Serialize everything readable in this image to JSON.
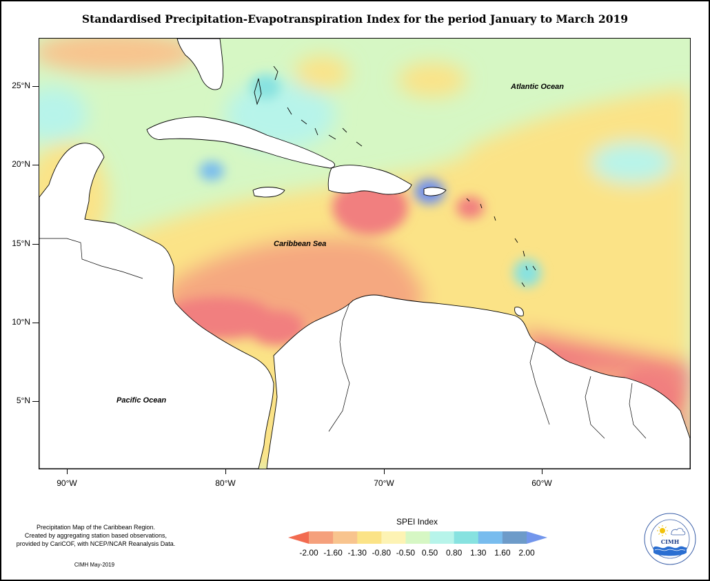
{
  "title": "Standardised Precipitation-Evapotranspiration Index for the period January to March 2019",
  "map_labels": {
    "atlantic": "Atlantic Ocean",
    "caribbean": "Caribbean Sea",
    "pacific": "Pacific Ocean"
  },
  "axes": {
    "y_labels": [
      "25°N",
      "20°N",
      "15°N",
      "10°N",
      "5°N"
    ],
    "x_labels": [
      "90°W",
      "80°W",
      "70°W",
      "60°W"
    ]
  },
  "footer": {
    "note_lines": [
      "Precipitation Map of the Caribbean Region.",
      "Created by aggregating station based observations,",
      "provided by CariCOF, with NCEP/NCAR Reanalysis Data."
    ],
    "credit": "CIMH May-2019"
  },
  "legend": {
    "title": "SPEI Index",
    "breaks": [
      "-2.00",
      "-1.60",
      "-1.30",
      "-0.80",
      "-0.50",
      "0.50",
      "0.80",
      "1.30",
      "1.60",
      "2.00"
    ],
    "colors": [
      "#f26b50",
      "#f5a07c",
      "#f8c48e",
      "#fbe387",
      "#fdf3b4",
      "#d6f7c4",
      "#b7f4ea",
      "#87e2e0",
      "#78bcee",
      "#6d9bc9",
      "#7296ec"
    ]
  },
  "logo": {
    "text": "CIMH",
    "ring_text": "Caribbean Institute for Meteorology and Hydrology",
    "icons": [
      "sun-icon",
      "cloud-icon",
      "waves-icon"
    ]
  },
  "colors": {
    "land": "#ffffff",
    "border": "#000000",
    "dry_extreme": "#f17f7f",
    "dry": "#f5a880",
    "moderately_dry": "#fbe385",
    "near_normal": "#d6f7c4",
    "wet": "#9be9f0",
    "very_wet": "#6d8ef0"
  }
}
